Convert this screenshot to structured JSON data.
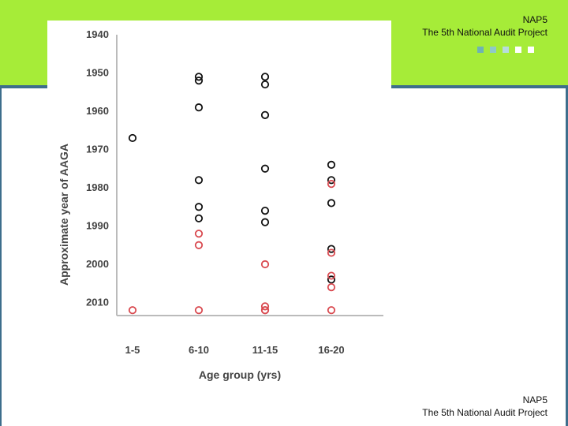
{
  "header": {
    "org_short": "NAP5",
    "org_full": "The 5th National Audit Project"
  },
  "footer": {
    "org_short": "NAP5",
    "org_full": "The 5th National Audit Project"
  },
  "colors": {
    "band": "#a6ec38",
    "rule": "#3d6e8c",
    "series_black": "#111111",
    "series_red": "#d9494f",
    "squares": [
      "#6fb3b3",
      "#8fc9c9",
      "#b7dcdc",
      "#ffffff",
      "#ffffff"
    ]
  },
  "chart_data": {
    "type": "scatter",
    "title": "",
    "xlabel": "Age group (yrs)",
    "ylabel": "Approximate year of AAGA",
    "categories": [
      "1-5",
      "6-10",
      "11-15",
      "16-20"
    ],
    "ylim": [
      1940,
      2012
    ],
    "y_reversed": true,
    "yticks": [
      1940,
      1950,
      1960,
      1970,
      1980,
      1990,
      2000,
      2010
    ],
    "grid": false,
    "legend": "none",
    "series": [
      {
        "color": "#111111",
        "points": [
          {
            "x": "1-5",
            "y": 1967
          },
          {
            "x": "6-10",
            "y": 1951
          },
          {
            "x": "6-10",
            "y": 1952
          },
          {
            "x": "6-10",
            "y": 1959
          },
          {
            "x": "6-10",
            "y": 1978
          },
          {
            "x": "6-10",
            "y": 1985
          },
          {
            "x": "6-10",
            "y": 1988
          },
          {
            "x": "11-15",
            "y": 1951
          },
          {
            "x": "11-15",
            "y": 1953
          },
          {
            "x": "11-15",
            "y": 1961
          },
          {
            "x": "11-15",
            "y": 1975
          },
          {
            "x": "11-15",
            "y": 1986
          },
          {
            "x": "11-15",
            "y": 1989
          },
          {
            "x": "16-20",
            "y": 1974
          },
          {
            "x": "16-20",
            "y": 1978
          },
          {
            "x": "16-20",
            "y": 1984
          },
          {
            "x": "16-20",
            "y": 1996
          },
          {
            "x": "16-20",
            "y": 2004
          }
        ]
      },
      {
        "color": "#d9494f",
        "points": [
          {
            "x": "1-5",
            "y": 2012
          },
          {
            "x": "6-10",
            "y": 1992
          },
          {
            "x": "6-10",
            "y": 1995
          },
          {
            "x": "6-10",
            "y": 2012
          },
          {
            "x": "11-15",
            "y": 2000
          },
          {
            "x": "11-15",
            "y": 2011
          },
          {
            "x": "11-15",
            "y": 2012
          },
          {
            "x": "11-15",
            "y": 2012
          },
          {
            "x": "16-20",
            "y": 1979
          },
          {
            "x": "16-20",
            "y": 1997
          },
          {
            "x": "16-20",
            "y": 2003
          },
          {
            "x": "16-20",
            "y": 2006
          },
          {
            "x": "16-20",
            "y": 2012
          }
        ]
      }
    ]
  }
}
